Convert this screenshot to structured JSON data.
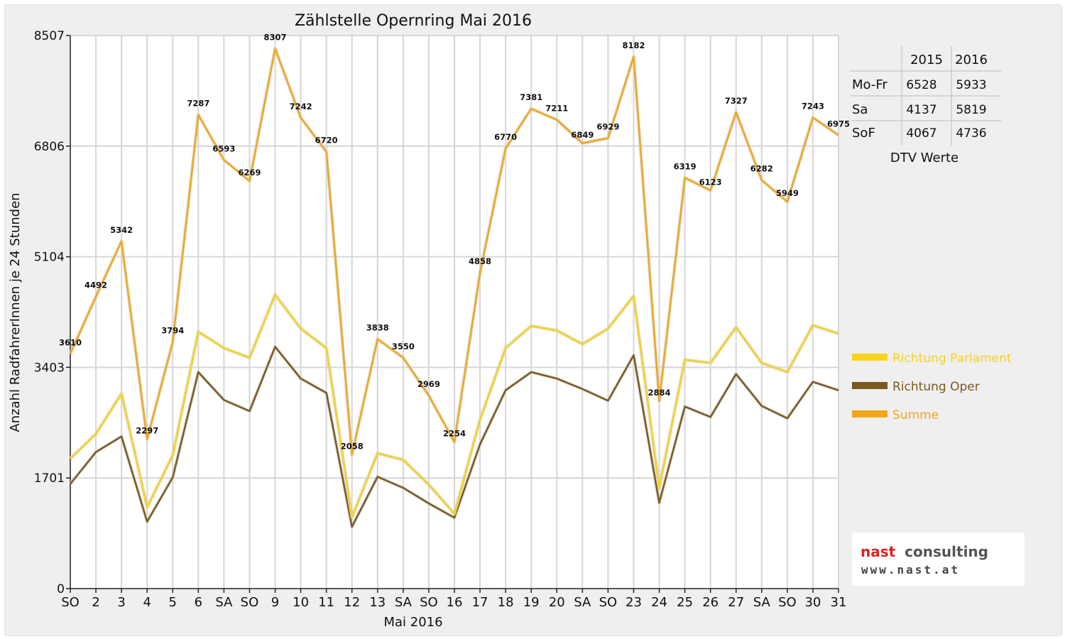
{
  "chart_data": {
    "type": "line",
    "title": "Zählstelle Opernring Mai 2016",
    "xlabel": "Mai 2016",
    "ylabel": "Anzahl RadfahrerInnen je 24 Stunden",
    "yticks": [
      0,
      1701,
      3403,
      5104,
      6806,
      8507
    ],
    "ylim": [
      0,
      8507
    ],
    "grid": true,
    "categories": [
      "SO",
      "2",
      "3",
      "4",
      "5",
      "6",
      "SA",
      "SO",
      "9",
      "10",
      "11",
      "12",
      "13",
      "SA",
      "SO",
      "16",
      "17",
      "18",
      "19",
      "20",
      "SA",
      "SO",
      "23",
      "24",
      "25",
      "26",
      "27",
      "SA",
      "SO",
      "30",
      "31"
    ],
    "category_colors": [
      "#e00000",
      "#111111",
      "#111111",
      "#111111",
      "#e00000",
      "#111111",
      "#111111",
      "#e00000",
      "#111111",
      "#111111",
      "#111111",
      "#111111",
      "#111111",
      "#111111",
      "#e00000",
      "#e00000",
      "#111111",
      "#111111",
      "#111111",
      "#111111",
      "#111111",
      "#e00000",
      "#111111",
      "#111111",
      "#111111",
      "#e00000",
      "#111111",
      "#111111",
      "#e00000",
      "#111111",
      "#111111"
    ],
    "series": [
      {
        "name": "Richtung Parlament",
        "color": "#f6d31f",
        "values": [
          2000,
          2380,
          3000,
          1250,
          2050,
          3950,
          3700,
          3550,
          4520,
          4000,
          3700,
          1100,
          2080,
          1980,
          1600,
          1150,
          2600,
          3700,
          4040,
          3970,
          3760,
          4000,
          4500,
          1550,
          3520,
          3470,
          4020,
          3470,
          3330,
          4050,
          3920
        ]
      },
      {
        "name": "Richtung Oper",
        "color": "#7a5a1f",
        "values": [
          1610,
          2100,
          2340,
          1030,
          1710,
          3330,
          2900,
          2730,
          3720,
          3230,
          3010,
          950,
          1720,
          1550,
          1310,
          1090,
          2220,
          3050,
          3330,
          3230,
          3070,
          2890,
          3590,
          1320,
          2800,
          2640,
          3300,
          2810,
          2620,
          3180,
          3050
        ]
      },
      {
        "name": "Summe",
        "color": "#f2a71a",
        "values": [
          3610,
          4492,
          5342,
          2297,
          3794,
          7287,
          6593,
          6269,
          8307,
          7242,
          6720,
          2058,
          3838,
          3550,
          2969,
          2254,
          4858,
          6770,
          7381,
          7211,
          6849,
          6929,
          8182,
          2884,
          6319,
          6123,
          7327,
          6282,
          5949,
          7243,
          6975
        ]
      }
    ],
    "data_labels": [
      "3610",
      "4492",
      "5342",
      "2297",
      "3794",
      "7287",
      "6593",
      "6269",
      "8307",
      "7242",
      "6720",
      "2058",
      "3838",
      "3550",
      "2969",
      "2254",
      "4858",
      "6770",
      "7381",
      "7211",
      "6849",
      "6929",
      "8182",
      "2884",
      "6319",
      "6123",
      "7327",
      "6282",
      "5949",
      "7243",
      "6975"
    ],
    "legend_position": "right"
  },
  "table": {
    "headers": [
      "",
      "2015",
      "2016"
    ],
    "rows": [
      [
        "Mo-Fr",
        "6528",
        "5933"
      ],
      [
        "Sa",
        "4137",
        "5819"
      ],
      [
        "SoF",
        "4067",
        "4736"
      ]
    ],
    "caption": "DTV Werte"
  },
  "logo": {
    "main_part1": "nast",
    "main_part2": "consulting",
    "sub": "www.nast.at",
    "color_red": "#e02020",
    "color_dark": "#555555"
  }
}
